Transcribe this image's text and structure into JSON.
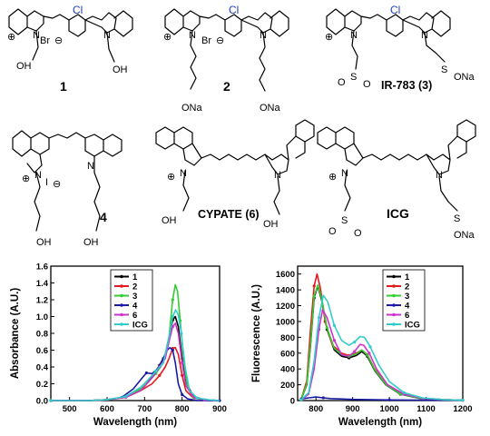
{
  "molecules": [
    {
      "label": "1",
      "counter_ion": "Br",
      "chloro": "Cl",
      "substituents": [
        "OH",
        "OH"
      ]
    },
    {
      "label": "2",
      "counter_ion": "Br",
      "chloro": "Cl",
      "substituents": [
        "ONa",
        "ONa"
      ]
    },
    {
      "label": "IR-783 (3)",
      "chloro": "Cl",
      "substituents": [
        "O",
        "O",
        "ONa"
      ]
    },
    {
      "label": "4",
      "counter_ion": "I",
      "substituents": [
        "OH",
        "OH"
      ]
    },
    {
      "label": "CYPATE (6)",
      "substituents": [
        "OH",
        "OH"
      ]
    },
    {
      "label": "ICG",
      "substituents": [
        "O",
        "O",
        "ONa"
      ]
    }
  ],
  "atoms": {
    "N": "N",
    "S": "S",
    "O": "O",
    "plus": "⊕",
    "minus": "⊖"
  },
  "chart_data": [
    {
      "type": "line",
      "xlabel": "Wavelength (nm)",
      "ylabel": "Absorbance (A.U.)",
      "xlim": [
        450,
        900
      ],
      "ylim": [
        0.0,
        1.6
      ],
      "xticks": [
        500,
        600,
        700,
        800,
        900
      ],
      "yticks": [
        0.0,
        0.2,
        0.4,
        0.6,
        0.8,
        1.0,
        1.2,
        1.4,
        1.6
      ],
      "xtick_labels": [
        "500",
        "600",
        "700",
        "800",
        "900"
      ],
      "ytick_labels": [
        "0.0",
        "0.2",
        "0.4",
        "0.6",
        "0.8",
        "1.0",
        "1.2",
        "1.4",
        "1.6"
      ],
      "grid": false,
      "legend_position": "top-right",
      "series": [
        {
          "name": "1",
          "color": "#000000",
          "x": [
            450,
            550,
            600,
            650,
            690,
            720,
            740,
            755,
            765,
            775,
            782,
            790,
            800,
            810,
            830,
            860,
            900
          ],
          "y": [
            0.0,
            0.0,
            0.01,
            0.04,
            0.12,
            0.28,
            0.42,
            0.55,
            0.75,
            0.96,
            1.0,
            0.88,
            0.5,
            0.22,
            0.05,
            0.01,
            0.0
          ]
        },
        {
          "name": "2",
          "color": "#e41a1c",
          "x": [
            450,
            550,
            600,
            650,
            690,
            720,
            740,
            755,
            765,
            775,
            782,
            790,
            800,
            810,
            830,
            860,
            900
          ],
          "y": [
            0.0,
            0.0,
            0.01,
            0.04,
            0.12,
            0.2,
            0.3,
            0.4,
            0.5,
            0.62,
            0.63,
            0.55,
            0.3,
            0.12,
            0.03,
            0.01,
            0.0
          ]
        },
        {
          "name": "3",
          "color": "#33cc33",
          "x": [
            450,
            550,
            600,
            650,
            690,
            710,
            730,
            750,
            765,
            775,
            782,
            788,
            795,
            805,
            815,
            830,
            860,
            900
          ],
          "y": [
            0.0,
            0.0,
            0.01,
            0.04,
            0.14,
            0.22,
            0.32,
            0.45,
            0.75,
            1.2,
            1.38,
            1.3,
            0.95,
            0.45,
            0.15,
            0.04,
            0.01,
            0.0
          ]
        },
        {
          "name": "4",
          "color": "#1a1aa6",
          "x": [
            450,
            550,
            600,
            640,
            670,
            690,
            705,
            720,
            735,
            750,
            760,
            768,
            775,
            782,
            790,
            800,
            815,
            840,
            900
          ],
          "y": [
            0.0,
            0.0,
            0.01,
            0.04,
            0.14,
            0.25,
            0.33,
            0.32,
            0.38,
            0.5,
            0.6,
            0.63,
            0.6,
            0.45,
            0.2,
            0.07,
            0.02,
            0.0,
            0.0
          ]
        },
        {
          "name": "6",
          "color": "#cc33cc",
          "x": [
            450,
            550,
            600,
            650,
            690,
            720,
            740,
            755,
            765,
            775,
            782,
            790,
            800,
            810,
            830,
            860,
            900
          ],
          "y": [
            0.0,
            0.0,
            0.01,
            0.04,
            0.12,
            0.27,
            0.4,
            0.5,
            0.7,
            0.88,
            0.92,
            0.8,
            0.45,
            0.18,
            0.04,
            0.01,
            0.0
          ]
        },
        {
          "name": "ICG",
          "color": "#33cccc",
          "x": [
            450,
            550,
            600,
            650,
            690,
            710,
            730,
            750,
            765,
            775,
            783,
            790,
            798,
            808,
            820,
            840,
            870,
            900
          ],
          "y": [
            0.0,
            0.0,
            0.01,
            0.05,
            0.16,
            0.25,
            0.35,
            0.45,
            0.75,
            1.0,
            1.08,
            1.02,
            0.8,
            0.4,
            0.12,
            0.03,
            0.01,
            0.0
          ]
        }
      ]
    },
    {
      "type": "line",
      "xlabel": "Wavelength (nm)",
      "ylabel": "Fluorescence (A.U.)",
      "xlim": [
        750,
        1200
      ],
      "ylim": [
        0,
        1700
      ],
      "xticks": [
        800,
        900,
        1000,
        1100,
        1200
      ],
      "yticks": [
        0,
        200,
        400,
        600,
        800,
        1000,
        1200,
        1400,
        1600
      ],
      "xtick_labels": [
        "800",
        "900",
        "1000",
        "1100",
        "1200"
      ],
      "ytick_labels": [
        "0",
        "200",
        "400",
        "600",
        "800",
        "1000",
        "1200",
        "1400",
        "1600"
      ],
      "grid": false,
      "legend_position": "top-right",
      "series": [
        {
          "name": "1",
          "color": "#000000",
          "x": [
            760,
            775,
            785,
            795,
            805,
            815,
            830,
            850,
            870,
            890,
            910,
            925,
            940,
            960,
            990,
            1030,
            1080,
            1150,
            1200
          ],
          "y": [
            20,
            200,
            700,
            1300,
            1450,
            1280,
            900,
            640,
            560,
            540,
            570,
            620,
            560,
            380,
            200,
            80,
            30,
            10,
            5
          ]
        },
        {
          "name": "2",
          "color": "#e41a1c",
          "x": [
            760,
            775,
            785,
            795,
            803,
            812,
            825,
            845,
            870,
            890,
            910,
            925,
            940,
            960,
            990,
            1030,
            1080,
            1150,
            1200
          ],
          "y": [
            20,
            250,
            900,
            1450,
            1600,
            1420,
            1000,
            700,
            600,
            570,
            600,
            640,
            580,
            400,
            210,
            90,
            35,
            10,
            5
          ]
        },
        {
          "name": "3",
          "color": "#33cc33",
          "x": [
            760,
            775,
            785,
            795,
            805,
            815,
            830,
            850,
            870,
            890,
            910,
            925,
            940,
            960,
            990,
            1030,
            1080,
            1150,
            1200
          ],
          "y": [
            20,
            210,
            720,
            1320,
            1460,
            1300,
            920,
            660,
            580,
            560,
            590,
            640,
            575,
            390,
            205,
            85,
            32,
            10,
            5
          ]
        },
        {
          "name": "4",
          "color": "#1a1aa6",
          "x": [
            760,
            780,
            800,
            820,
            840,
            900,
            1000,
            1100,
            1200
          ],
          "y": [
            20,
            35,
            45,
            35,
            25,
            15,
            8,
            5,
            3
          ]
        },
        {
          "name": "6",
          "color": "#cc33cc",
          "x": [
            760,
            780,
            795,
            808,
            818,
            830,
            850,
            870,
            890,
            905,
            920,
            930,
            945,
            965,
            995,
            1040,
            1090,
            1150,
            1200
          ],
          "y": [
            10,
            80,
            400,
            900,
            1150,
            1050,
            760,
            580,
            560,
            620,
            710,
            700,
            600,
            400,
            200,
            80,
            30,
            10,
            5
          ]
        },
        {
          "name": "ICG",
          "color": "#33cccc",
          "x": [
            760,
            780,
            795,
            808,
            820,
            832,
            850,
            870,
            890,
            905,
            920,
            932,
            948,
            970,
            1000,
            1040,
            1090,
            1150,
            1200
          ],
          "y": [
            10,
            100,
            500,
            1050,
            1330,
            1250,
            950,
            760,
            700,
            740,
            810,
            800,
            680,
            460,
            240,
            100,
            35,
            10,
            5
          ]
        }
      ]
    }
  ]
}
